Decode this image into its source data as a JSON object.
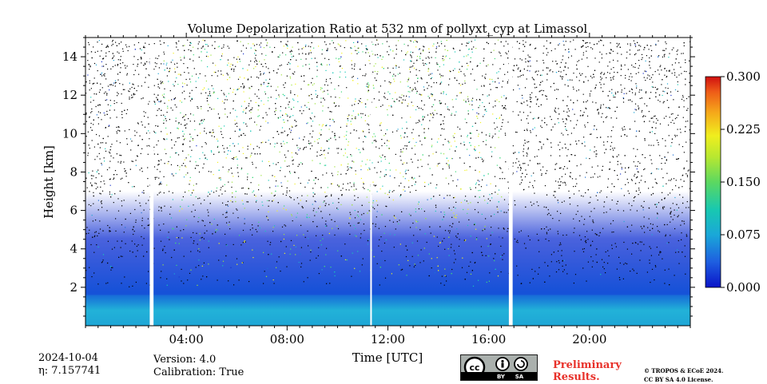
{
  "chart_data": {
    "type": "heatmap",
    "title": "Volume Depolarization Ratio at 532 nm of pollyxt_cyp at Limassol",
    "xlabel": "Time [UTC]",
    "ylabel": "Height [km]",
    "x_unit": "hour UTC",
    "xlim": [
      0,
      24
    ],
    "ylim": [
      0,
      15
    ],
    "x_tick_values": [
      4,
      8,
      12,
      16,
      20
    ],
    "x_tick_labels": [
      "04:00",
      "08:00",
      "12:00",
      "16:00",
      "20:00"
    ],
    "y_tick_values": [
      2,
      4,
      6,
      8,
      10,
      12,
      14
    ],
    "y_tick_labels": [
      "2",
      "4",
      "6",
      "8",
      "10",
      "12",
      "14"
    ],
    "colorbar": {
      "min": 0.0,
      "max": 0.3,
      "tick_values": [
        0.0,
        0.075,
        0.15,
        0.225,
        0.3
      ],
      "tick_labels": [
        "0.000",
        "0.075",
        "0.150",
        "0.225",
        "0.300"
      ],
      "colormap": [
        "#1b35cc",
        "#1f6fd6",
        "#1fa6d6",
        "#17c9b8",
        "#3fd97a",
        "#9de33d",
        "#f2f021",
        "#f5b01a",
        "#f06a18",
        "#d21414"
      ]
    },
    "no_data_gaps_hours": [
      [
        2.55,
        2.7
      ],
      [
        11.3,
        11.35
      ],
      [
        16.8,
        16.95
      ]
    ],
    "noisy_layer_top_km": 14.9,
    "boundary_layer_top_km": 4.0,
    "aerosol_layer_top_km": 1.6
  },
  "footer": {
    "date": "2024-10-04",
    "eta_label": "η: 7.157741",
    "version": "Version: 4.0",
    "calibration": "Calibration: True",
    "preliminary_line1": "Preliminary",
    "preliminary_line2": "Results.",
    "copyright_line1": "© TROPOS & ECoE 2024.",
    "copyright_line2": "CC BY SA 4.0 License.",
    "license_badge": {
      "cc": "cc",
      "by": "BY",
      "sa": "SA"
    }
  },
  "colors": {
    "preliminary": "#e8312a",
    "no_data": "#ffffff",
    "noise": "#000000"
  }
}
